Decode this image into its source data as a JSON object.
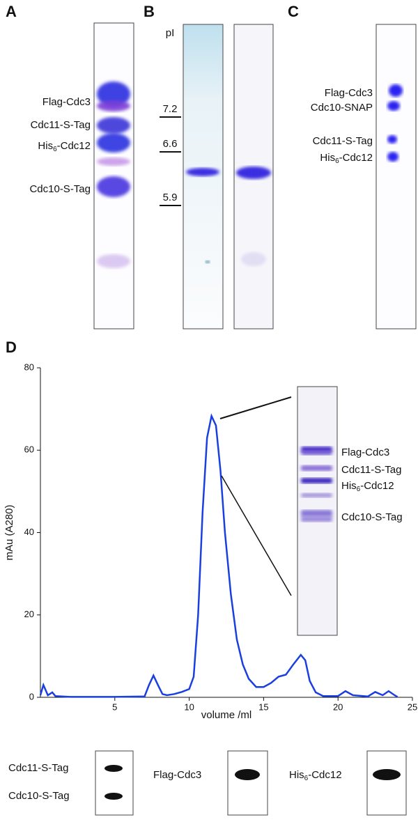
{
  "panel_a": {
    "label": "A",
    "proteins": [
      "Flag-Cdc3",
      "Cdc11-S-Tag",
      {
        "main": "His",
        "sub": "6",
        "rest": "-Cdc12"
      },
      "Cdc10-S-Tag"
    ]
  },
  "panel_b": {
    "label": "B",
    "axis_title": "pI",
    "markers": [
      7.2,
      6.6,
      5.9
    ]
  },
  "panel_c": {
    "label": "C",
    "proteins": [
      "Flag-Cdc3",
      "Cdc10-SNAP",
      "Cdc11-S-Tag",
      {
        "main": "His",
        "sub": "6",
        "rest": "-Cdc12"
      }
    ]
  },
  "panel_d": {
    "label": "D",
    "inset_proteins": [
      "Flag-Cdc3",
      "Cdc11-S-Tag",
      {
        "main": "His",
        "sub": "6",
        "rest": "-Cdc12"
      },
      "Cdc10-S-Tag"
    ],
    "blots": [
      [
        "Cdc11-S-Tag",
        "Cdc10-S-Tag"
      ],
      [
        "Flag-Cdc3"
      ],
      [
        {
          "main": "His",
          "sub": "6",
          "rest": "-Cdc12"
        }
      ]
    ]
  },
  "chart_data": {
    "type": "line",
    "x_label": "volume /ml",
    "y_label": "mAu (A280)",
    "x": [
      0,
      0.2,
      0.5,
      0.8,
      1,
      2,
      5,
      7,
      7.3,
      7.6,
      7.9,
      8.2,
      8.5,
      9,
      9.5,
      10,
      10.3,
      10.6,
      10.9,
      11.2,
      11.5,
      11.8,
      12.1,
      12.4,
      12.8,
      13.2,
      13.6,
      14,
      14.5,
      15,
      15.5,
      16,
      16.5,
      17,
      17.5,
      17.8,
      18.1,
      18.5,
      19,
      20,
      20.5,
      21,
      22,
      22.5,
      23,
      23.4,
      23.8,
      24
    ],
    "values": [
      0.5,
      3,
      0.5,
      1.2,
      0.3,
      0.1,
      0.1,
      0.2,
      3,
      5.3,
      3,
      0.8,
      0.5,
      0.8,
      1.3,
      2,
      5,
      20,
      45,
      63,
      68.3,
      66,
      55,
      40,
      25,
      14,
      8,
      4.5,
      2.5,
      2.5,
      3.5,
      5,
      5.5,
      8,
      10.3,
      9,
      4,
      1.2,
      0.3,
      0.3,
      1.5,
      0.5,
      0.2,
      1.3,
      0.5,
      1.5,
      0.5,
      0.1
    ],
    "color": "#1a3fe0",
    "xlim": [
      0,
      25
    ],
    "ylim": [
      0,
      80
    ],
    "xticks": [
      5,
      10,
      15,
      20,
      25
    ],
    "yticks": [
      0,
      20,
      40,
      60,
      80
    ],
    "grid": false
  }
}
